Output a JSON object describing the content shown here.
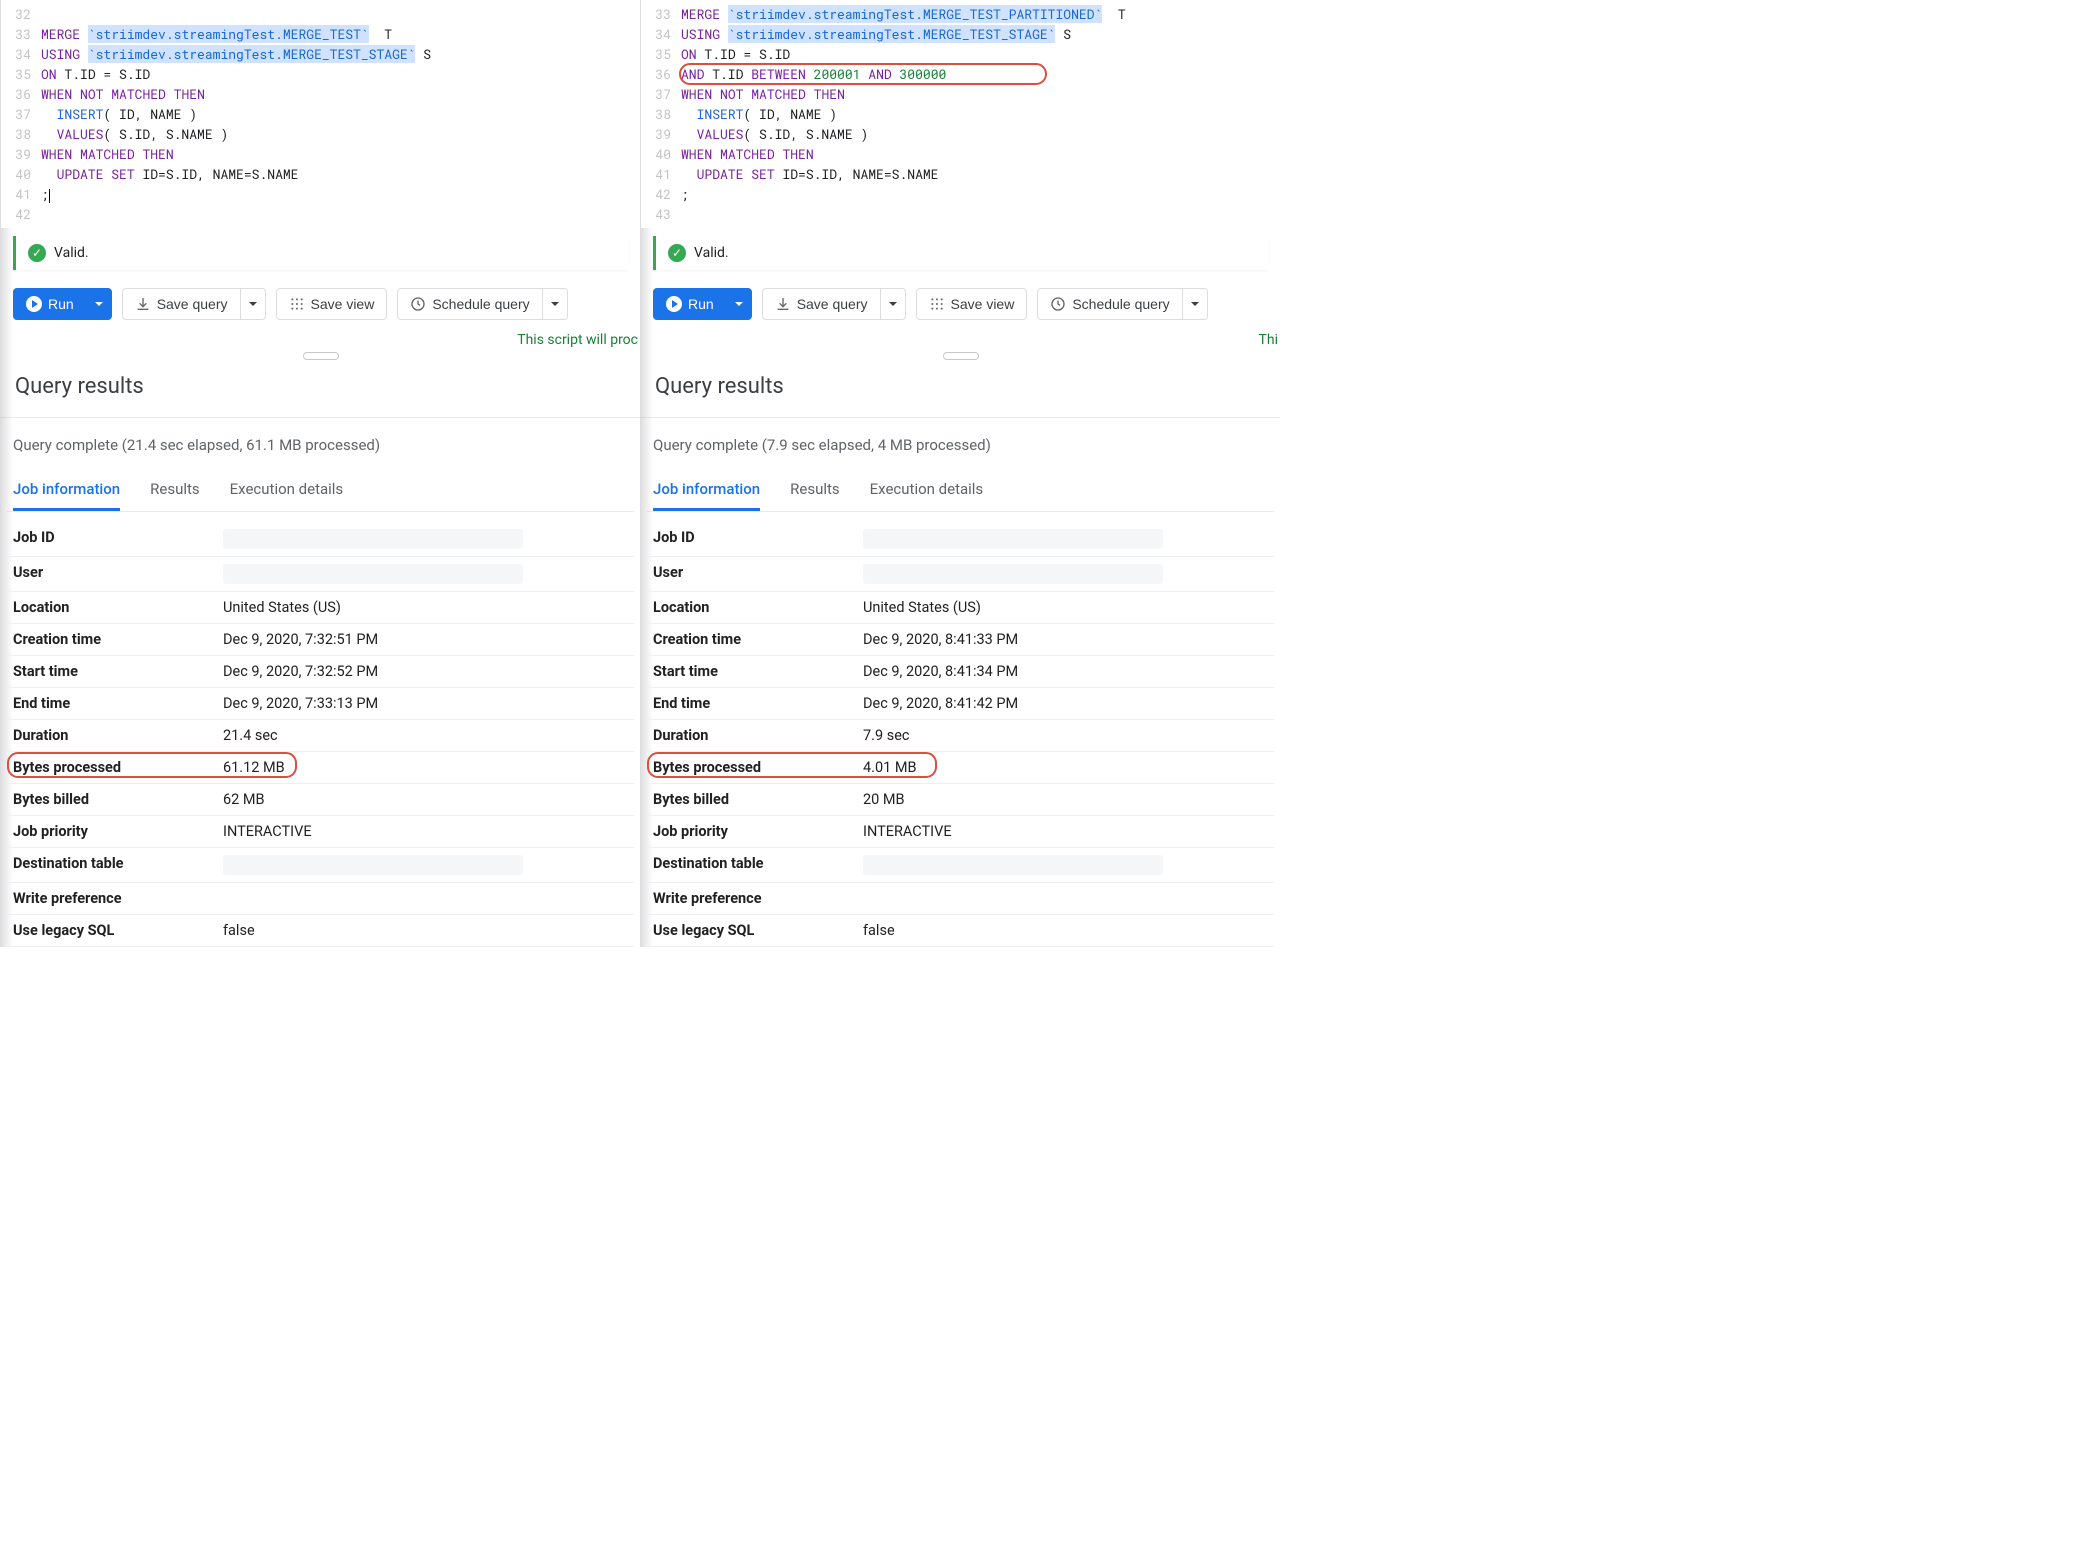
{
  "left": {
    "code": {
      "start": 32,
      "lines": [
        [],
        [
          {
            "t": "kw",
            "v": "MERGE"
          },
          {
            "t": "p",
            "v": " "
          },
          {
            "t": "strhl",
            "v": "`striimdev.streamingTest.MERGE_TEST`"
          },
          {
            "t": "p",
            "v": "  T"
          }
        ],
        [
          {
            "t": "kw",
            "v": "USING"
          },
          {
            "t": "p",
            "v": " "
          },
          {
            "t": "strhl",
            "v": "`striimdev.streamingTest.MERGE_TEST_STAGE`"
          },
          {
            "t": "p",
            "v": " S"
          }
        ],
        [
          {
            "t": "kw",
            "v": "ON"
          },
          {
            "t": "p",
            "v": " T.ID = S.ID"
          }
        ],
        [
          {
            "t": "kw",
            "v": "WHEN"
          },
          {
            "t": "p",
            "v": " "
          },
          {
            "t": "kw",
            "v": "NOT"
          },
          {
            "t": "p",
            "v": " "
          },
          {
            "t": "kw",
            "v": "MATCHED"
          },
          {
            "t": "p",
            "v": " "
          },
          {
            "t": "kw",
            "v": "THEN"
          }
        ],
        [
          {
            "t": "p",
            "v": "  "
          },
          {
            "t": "fn",
            "v": "INSERT"
          },
          {
            "t": "p",
            "v": "( ID, NAME )"
          }
        ],
        [
          {
            "t": "p",
            "v": "  "
          },
          {
            "t": "kw",
            "v": "VALUES"
          },
          {
            "t": "p",
            "v": "( S.ID, S.NAME )"
          }
        ],
        [
          {
            "t": "kw",
            "v": "WHEN"
          },
          {
            "t": "p",
            "v": " "
          },
          {
            "t": "kw",
            "v": "MATCHED"
          },
          {
            "t": "p",
            "v": " "
          },
          {
            "t": "kw",
            "v": "THEN"
          }
        ],
        [
          {
            "t": "p",
            "v": "  "
          },
          {
            "t": "kw",
            "v": "UPDATE"
          },
          {
            "t": "p",
            "v": " "
          },
          {
            "t": "kw",
            "v": "SET"
          },
          {
            "t": "p",
            "v": " ID=S.ID, NAME=S.NAME"
          }
        ],
        [
          {
            "t": "p",
            "v": ";"
          }
        ],
        []
      ],
      "cursor_at": 41
    },
    "valid_label": "Valid.",
    "toolbar": {
      "run": "Run",
      "save_query": "Save query",
      "save_view": "Save view",
      "schedule_query": "Schedule query"
    },
    "script_note": "This script will proc",
    "results_title": "Query results",
    "complete": "Query complete (21.4 sec elapsed, 61.1 MB processed)",
    "tabs": {
      "job": "Job information",
      "results": "Results",
      "exec": "Execution details"
    },
    "job": [
      {
        "k": "Job ID",
        "v": "",
        "redact": true
      },
      {
        "k": "User",
        "v": "",
        "redact": true
      },
      {
        "k": "Location",
        "v": "United States (US)"
      },
      {
        "k": "Creation time",
        "v": "Dec 9, 2020, 7:32:51 PM"
      },
      {
        "k": "Start time",
        "v": "Dec 9, 2020, 7:32:52 PM"
      },
      {
        "k": "End time",
        "v": "Dec 9, 2020, 7:33:13 PM"
      },
      {
        "k": "Duration",
        "v": "21.4 sec"
      },
      {
        "k": "Bytes processed",
        "v": "61.12 MB",
        "circle": true
      },
      {
        "k": "Bytes billed",
        "v": "62 MB"
      },
      {
        "k": "Job priority",
        "v": "INTERACTIVE"
      },
      {
        "k": "Destination table",
        "v": "",
        "redact": true
      },
      {
        "k": "Write preference",
        "v": ""
      },
      {
        "k": "Use legacy SQL",
        "v": "false"
      }
    ]
  },
  "right": {
    "code": {
      "start": 33,
      "lines": [
        [
          {
            "t": "kw",
            "v": "MERGE"
          },
          {
            "t": "p",
            "v": " "
          },
          {
            "t": "strhl",
            "v": "`striimdev.streamingTest.MERGE_TEST_PARTITIONED`"
          },
          {
            "t": "p",
            "v": "  T"
          }
        ],
        [
          {
            "t": "kw",
            "v": "USING"
          },
          {
            "t": "p",
            "v": " "
          },
          {
            "t": "strhl",
            "v": "`striimdev.streamingTest.MERGE_TEST_STAGE`"
          },
          {
            "t": "p",
            "v": " S"
          }
        ],
        [
          {
            "t": "kw",
            "v": "ON"
          },
          {
            "t": "p",
            "v": " T.ID = S.ID"
          }
        ],
        [
          {
            "t": "kw",
            "v": "AND"
          },
          {
            "t": "p",
            "v": " T.ID "
          },
          {
            "t": "kw",
            "v": "BETWEEN"
          },
          {
            "t": "p",
            "v": " "
          },
          {
            "t": "num",
            "v": "200001"
          },
          {
            "t": "p",
            "v": " "
          },
          {
            "t": "kw",
            "v": "AND"
          },
          {
            "t": "p",
            "v": " "
          },
          {
            "t": "num",
            "v": "300000"
          }
        ],
        [
          {
            "t": "kw",
            "v": "WHEN"
          },
          {
            "t": "p",
            "v": " "
          },
          {
            "t": "kw",
            "v": "NOT"
          },
          {
            "t": "p",
            "v": " "
          },
          {
            "t": "kw",
            "v": "MATCHED"
          },
          {
            "t": "p",
            "v": " "
          },
          {
            "t": "kw",
            "v": "THEN"
          }
        ],
        [
          {
            "t": "p",
            "v": "  "
          },
          {
            "t": "fn",
            "v": "INSERT"
          },
          {
            "t": "p",
            "v": "( ID, NAME )"
          }
        ],
        [
          {
            "t": "p",
            "v": "  "
          },
          {
            "t": "kw",
            "v": "VALUES"
          },
          {
            "t": "p",
            "v": "( S.ID, S.NAME )"
          }
        ],
        [
          {
            "t": "kw",
            "v": "WHEN"
          },
          {
            "t": "p",
            "v": " "
          },
          {
            "t": "kw",
            "v": "MATCHED"
          },
          {
            "t": "p",
            "v": " "
          },
          {
            "t": "kw",
            "v": "THEN"
          }
        ],
        [
          {
            "t": "p",
            "v": "  "
          },
          {
            "t": "kw",
            "v": "UPDATE"
          },
          {
            "t": "p",
            "v": " "
          },
          {
            "t": "kw",
            "v": "SET"
          },
          {
            "t": "p",
            "v": " ID=S.ID, NAME=S.NAME"
          }
        ],
        [
          {
            "t": "p",
            "v": ";"
          }
        ],
        []
      ],
      "circle_line": 36
    },
    "valid_label": "Valid.",
    "toolbar": {
      "run": "Run",
      "save_query": "Save query",
      "save_view": "Save view",
      "schedule_query": "Schedule query"
    },
    "script_note": "Thi",
    "results_title": "Query results",
    "complete": "Query complete (7.9 sec elapsed, 4 MB processed)",
    "tabs": {
      "job": "Job information",
      "results": "Results",
      "exec": "Execution details"
    },
    "job": [
      {
        "k": "Job ID",
        "v": "",
        "redact": true
      },
      {
        "k": "User",
        "v": "",
        "redact": true
      },
      {
        "k": "Location",
        "v": "United States (US)"
      },
      {
        "k": "Creation time",
        "v": "Dec 9, 2020, 8:41:33 PM"
      },
      {
        "k": "Start time",
        "v": "Dec 9, 2020, 8:41:34 PM"
      },
      {
        "k": "End time",
        "v": "Dec 9, 2020, 8:41:42 PM"
      },
      {
        "k": "Duration",
        "v": "7.9 sec"
      },
      {
        "k": "Bytes processed",
        "v": "4.01 MB",
        "circle": true
      },
      {
        "k": "Bytes billed",
        "v": "20 MB"
      },
      {
        "k": "Job priority",
        "v": "INTERACTIVE"
      },
      {
        "k": "Destination table",
        "v": "",
        "redact": true
      },
      {
        "k": "Write preference",
        "v": ""
      },
      {
        "k": "Use legacy SQL",
        "v": "false"
      }
    ]
  },
  "colors": {
    "keyword": "#7b1fa2",
    "function": "#1967d2",
    "string_highlight_bg": "#cfe2ff",
    "number": "#188038",
    "primary": "#1a73e8",
    "success": "#34a853",
    "annot": "#d9503f",
    "border": "#dadce0"
  }
}
